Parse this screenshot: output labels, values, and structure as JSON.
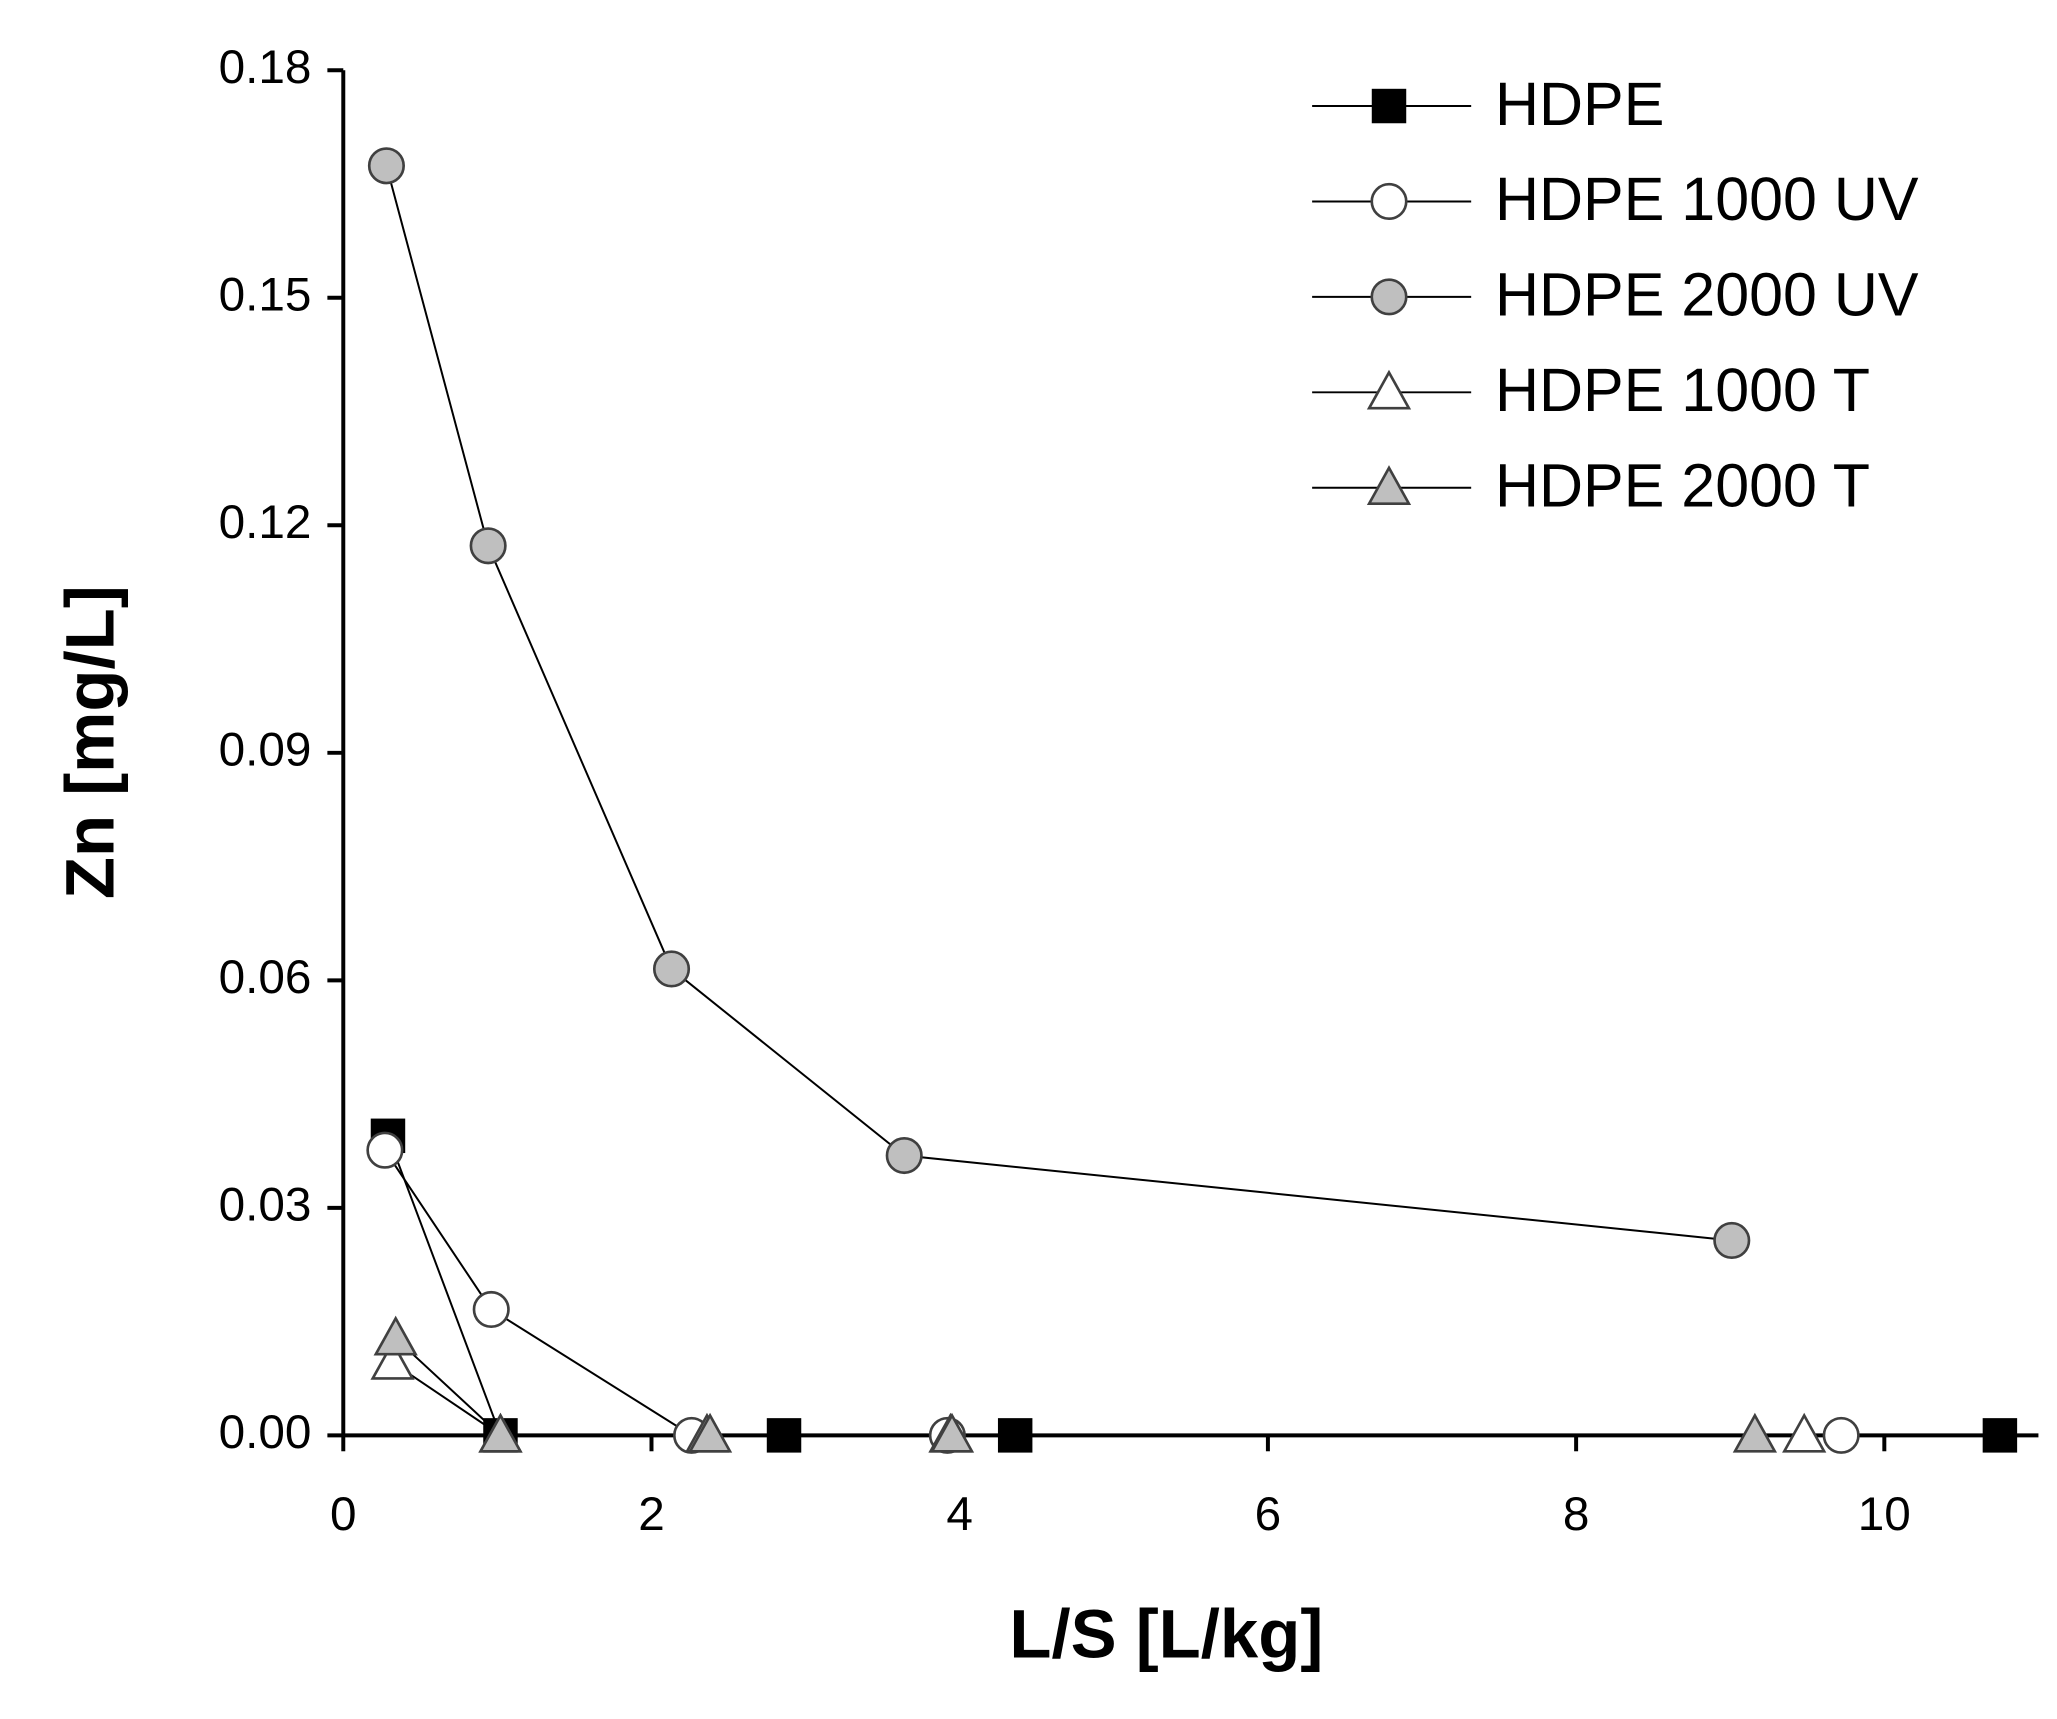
{
  "chart_data": {
    "type": "line",
    "x_label": "L/S [L/kg]",
    "y_label": "Zn [mg/L]",
    "xlim": [
      0,
      11
    ],
    "xticks": [
      0,
      2,
      4,
      6,
      8,
      10
    ],
    "ylim": [
      0,
      0.18
    ],
    "yticks": [
      {
        "value": 0,
        "label": "0.00"
      },
      0.03,
      0.06,
      0.09,
      0.12,
      0.15,
      0.18
    ],
    "grid": false,
    "legend": "upper right",
    "series": [
      {
        "name": "HDPE",
        "marker": "square",
        "color": "#000000",
        "x": [
          0.29,
          1.02,
          2.86,
          4.36,
          10.75
        ],
        "values": [
          0.0395,
          0,
          0,
          0,
          0
        ]
      },
      {
        "name": "HDPE 1000 UV",
        "marker": "circle",
        "color": "#ffffff",
        "x": [
          0.27,
          0.96,
          2.26,
          3.92,
          9.72
        ],
        "values": [
          0.0376,
          0.0166,
          0,
          0,
          0
        ]
      },
      {
        "name": "HDPE 2000 UV",
        "marker": "circle",
        "color": "#bfbfbf",
        "x": [
          0.28,
          0.94,
          2.13,
          3.64,
          9.01
        ],
        "values": [
          0.1674,
          0.1173,
          0.0615,
          0.0369,
          0.0257
        ]
      },
      {
        "name": "HDPE 1000 T",
        "marker": "triangle",
        "color": "#ffffff",
        "x": [
          0.32,
          1.02,
          2.36,
          3.94,
          9.48
        ],
        "values": [
          0.0096,
          0,
          0,
          0,
          0
        ]
      },
      {
        "name": "HDPE 2000 T",
        "marker": "triangle",
        "color": "#bfbfbf",
        "x": [
          0.34,
          1.02,
          2.38,
          3.95,
          9.16
        ],
        "values": [
          0.0128,
          0,
          0,
          0,
          0
        ]
      }
    ]
  }
}
